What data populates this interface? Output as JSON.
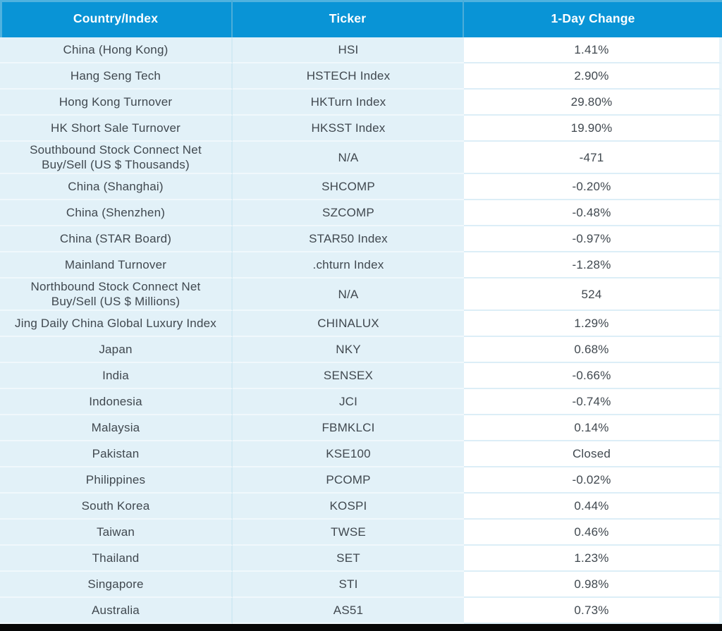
{
  "chart_data": {
    "type": "table",
    "title": "Asia market 1-day change table",
    "columns": [
      "Country/Index",
      "Ticker",
      "1-Day Change"
    ],
    "rows": [
      {
        "country": "China (Hong Kong)",
        "ticker": "HSI",
        "change": "1.41%",
        "tall": false
      },
      {
        "country": "Hang Seng Tech",
        "ticker": "HSTECH Index",
        "change": "2.90%",
        "tall": false
      },
      {
        "country": "Hong Kong Turnover",
        "ticker": "HKTurn Index",
        "change": "29.80%",
        "tall": false
      },
      {
        "country": "HK Short Sale Turnover",
        "ticker": "HKSST Index",
        "change": "19.90%",
        "tall": false
      },
      {
        "country": "Southbound Stock Connect Net\nBuy/Sell (US $ Thousands)",
        "ticker": "N/A",
        "change": "-471",
        "tall": true
      },
      {
        "country": "China (Shanghai)",
        "ticker": "SHCOMP",
        "change": "-0.20%",
        "tall": false
      },
      {
        "country": "China (Shenzhen)",
        "ticker": "SZCOMP",
        "change": "-0.48%",
        "tall": false
      },
      {
        "country": "China (STAR Board)",
        "ticker": "STAR50 Index",
        "change": "-0.97%",
        "tall": false
      },
      {
        "country": "Mainland Turnover",
        "ticker": ".chturn Index",
        "change": "-1.28%",
        "tall": false
      },
      {
        "country": "Northbound Stock Connect Net\nBuy/Sell (US $ Millions)",
        "ticker": "N/A",
        "change": "524",
        "tall": true
      },
      {
        "country": "Jing Daily China Global Luxury Index",
        "ticker": "CHINALUX",
        "change": "1.29%",
        "tall": false
      },
      {
        "country": "Japan",
        "ticker": "NKY",
        "change": "0.68%",
        "tall": false
      },
      {
        "country": "India",
        "ticker": "SENSEX",
        "change": "-0.66%",
        "tall": false
      },
      {
        "country": "Indonesia",
        "ticker": "JCI",
        "change": "-0.74%",
        "tall": false
      },
      {
        "country": "Malaysia",
        "ticker": "FBMKLCI",
        "change": "0.14%",
        "tall": false
      },
      {
        "country": "Pakistan",
        "ticker": "KSE100",
        "change": "Closed",
        "tall": false
      },
      {
        "country": "Philippines",
        "ticker": "PCOMP",
        "change": "-0.02%",
        "tall": false
      },
      {
        "country": "South Korea",
        "ticker": "KOSPI",
        "change": "0.44%",
        "tall": false
      },
      {
        "country": "Taiwan",
        "ticker": "TWSE",
        "change": "0.46%",
        "tall": false
      },
      {
        "country": "Thailand",
        "ticker": "SET",
        "change": "1.23%",
        "tall": false
      },
      {
        "country": "Singapore",
        "ticker": "STI",
        "change": "0.98%",
        "tall": false
      },
      {
        "country": "Australia",
        "ticker": "AS51",
        "change": "0.73%",
        "tall": false
      }
    ],
    "layout": {
      "header_position": "top",
      "grid": true,
      "value_columns_centered": true
    }
  },
  "colors": {
    "header_bg": "#0994d6",
    "header_text": "#ffffff",
    "row_bg_blue": "#e2f1f8",
    "row_bg_white": "#ffffff",
    "cell_text": "#40484f",
    "bottom_bar": "#070707"
  }
}
